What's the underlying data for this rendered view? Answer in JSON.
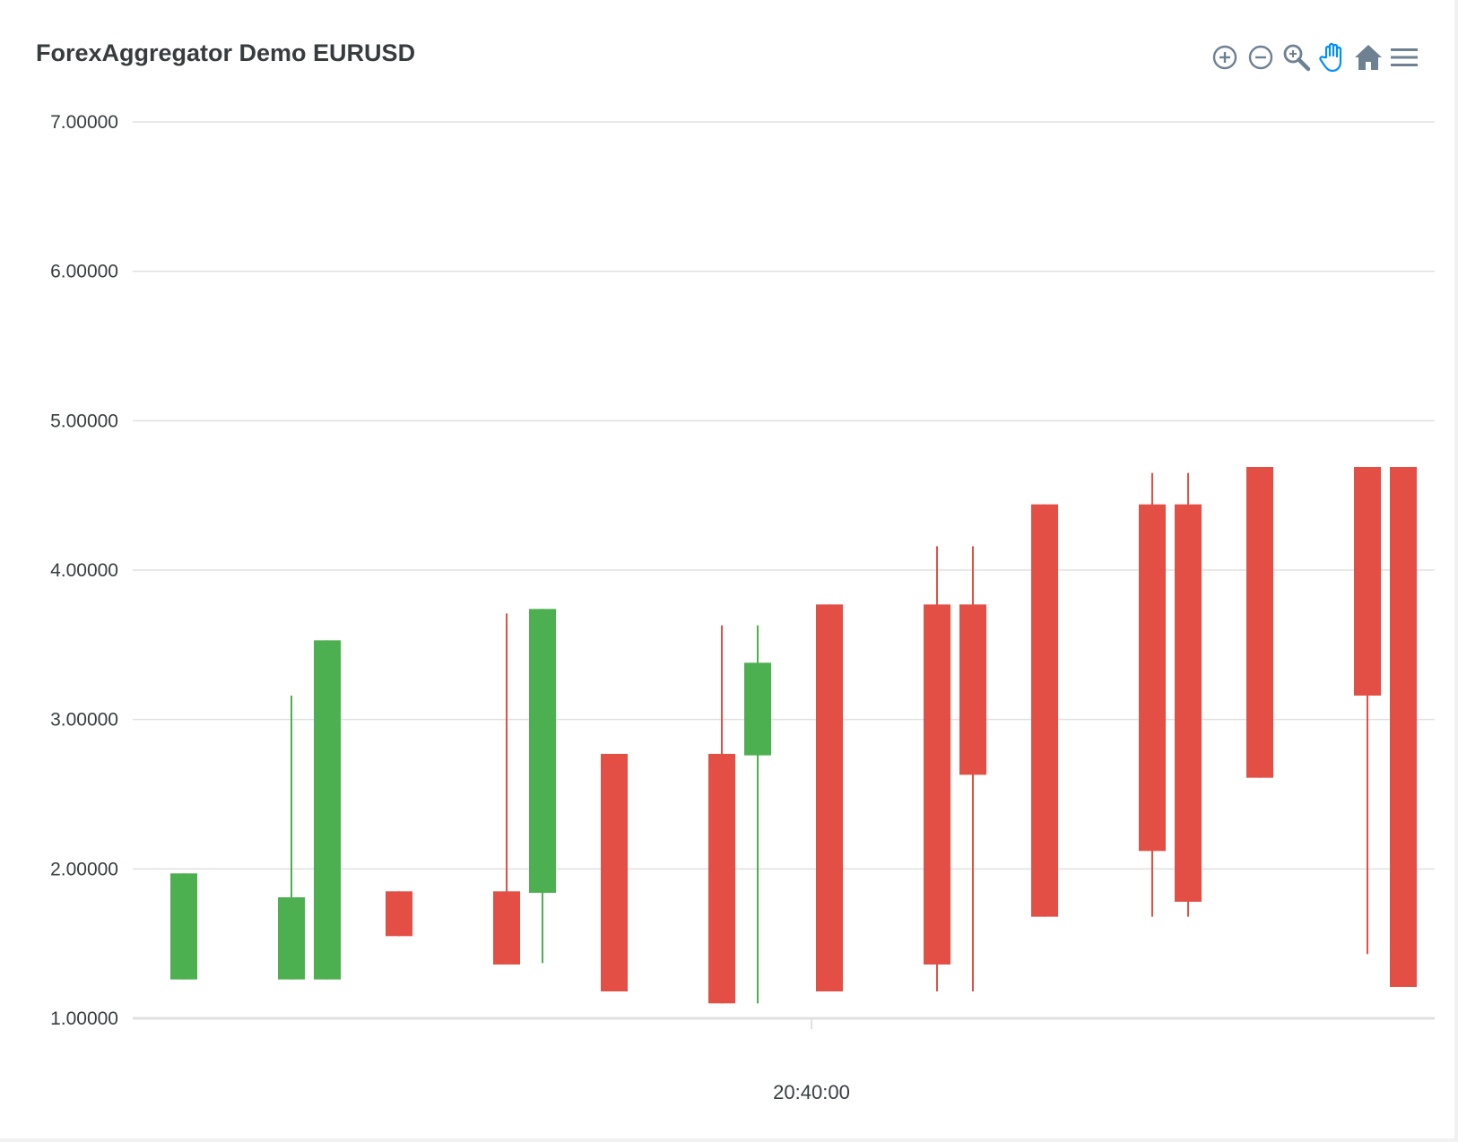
{
  "toolbar": {
    "icons": [
      "zoom-in-icon",
      "zoom-out-icon",
      "selection-zoom-icon",
      "pan-icon",
      "reset-zoom-home-icon",
      "menu-icon"
    ],
    "active_icon": "pan-icon",
    "colors": {
      "icon": "#6e8192",
      "active": "#008ffb"
    }
  },
  "chart_data": {
    "type": "candlestick",
    "title": "ForexAggregator Demo EURUSD",
    "xlabel": "",
    "ylabel": "",
    "ylim": [
      1,
      7
    ],
    "y_ticks": [
      "7.00000",
      "6.00000",
      "5.00000",
      "4.00000",
      "3.00000",
      "2.00000",
      "1.00000"
    ],
    "x_ticks": [
      {
        "label": "20:40:00",
        "index": 17.5
      }
    ],
    "grid": true,
    "colors": {
      "up": "#4caf50",
      "down": "#e34f44",
      "grid": "#e0e0e0"
    },
    "candles": [
      {
        "open": 1.26,
        "high": 1.97,
        "low": 1.26,
        "close": 1.97
      },
      null,
      null,
      {
        "open": 1.26,
        "high": 3.16,
        "low": 1.26,
        "close": 1.81
      },
      {
        "open": 1.26,
        "high": 3.53,
        "low": 1.26,
        "close": 3.53
      },
      null,
      {
        "open": 1.85,
        "high": 1.85,
        "low": 1.55,
        "close": 1.55
      },
      null,
      null,
      {
        "open": 1.85,
        "high": 3.71,
        "low": 1.36,
        "close": 1.36
      },
      {
        "open": 1.84,
        "high": 3.74,
        "low": 1.37,
        "close": 3.74
      },
      null,
      {
        "open": 2.77,
        "high": 2.77,
        "low": 1.18,
        "close": 1.18
      },
      null,
      null,
      {
        "open": 2.77,
        "high": 3.63,
        "low": 1.1,
        "close": 1.1
      },
      {
        "open": 2.76,
        "high": 3.63,
        "low": 1.1,
        "close": 3.38
      },
      null,
      {
        "open": 3.77,
        "high": 3.77,
        "low": 1.18,
        "close": 1.18
      },
      null,
      null,
      {
        "open": 3.77,
        "high": 4.16,
        "low": 1.18,
        "close": 1.36
      },
      {
        "open": 3.77,
        "high": 4.16,
        "low": 1.18,
        "close": 2.63
      },
      null,
      {
        "open": 4.44,
        "high": 4.44,
        "low": 1.68,
        "close": 1.68
      },
      null,
      null,
      {
        "open": 4.44,
        "high": 4.65,
        "low": 1.68,
        "close": 2.12
      },
      {
        "open": 4.44,
        "high": 4.65,
        "low": 1.68,
        "close": 1.78
      },
      null,
      {
        "open": 4.69,
        "high": 4.69,
        "low": 2.61,
        "close": 2.61
      },
      null,
      null,
      {
        "open": 4.69,
        "high": 4.69,
        "low": 1.43,
        "close": 3.16
      },
      {
        "open": 4.69,
        "high": 4.69,
        "low": 1.21,
        "close": 1.21
      }
    ]
  }
}
